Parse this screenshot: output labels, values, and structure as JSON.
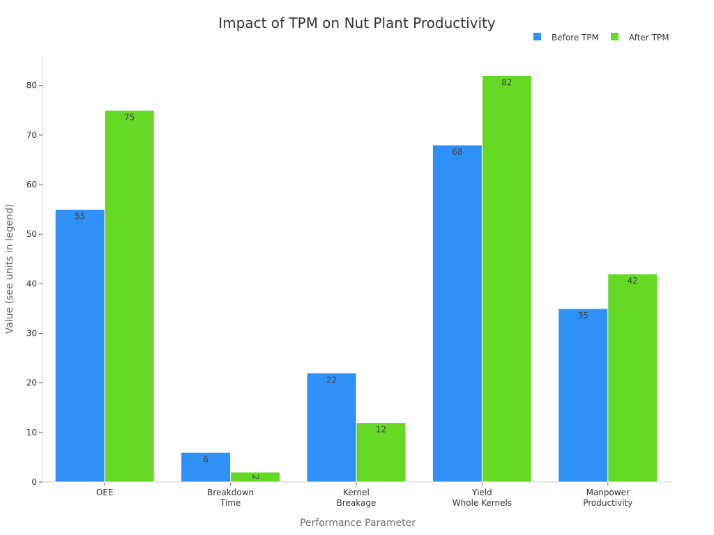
{
  "chart_data": {
    "type": "bar",
    "title": "Impact of TPM on Nut Plant Productivity",
    "xlabel": "Performance Parameter",
    "ylabel": "Value (see units in legend)",
    "categories": [
      [
        "OEE"
      ],
      [
        "Breakdown",
        "Time"
      ],
      [
        "Kernel",
        "Breakage"
      ],
      [
        "Yield",
        "Whole Kernels"
      ],
      [
        "Manpower",
        "Productivity"
      ]
    ],
    "series": [
      {
        "name": "Before TPM",
        "color": "#2f90f6",
        "values": [
          55,
          6,
          22,
          68,
          35
        ]
      },
      {
        "name": "After TPM",
        "color": "#66d926",
        "values": [
          75,
          2,
          12,
          82,
          42
        ]
      }
    ],
    "ylim": [
      0,
      86
    ],
    "yticks": [
      0,
      10,
      20,
      30,
      40,
      50,
      60,
      70,
      80
    ],
    "legend_position": "top-right",
    "grid": false
  }
}
